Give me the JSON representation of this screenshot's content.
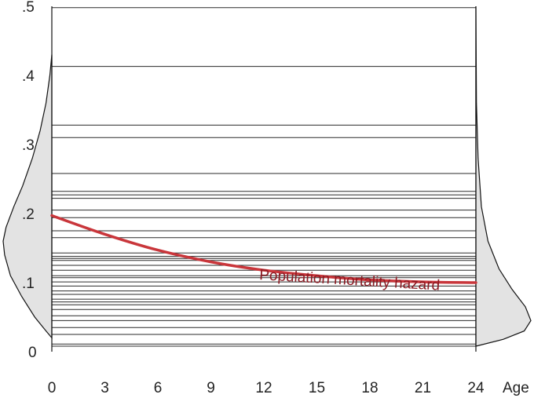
{
  "chart_data": {
    "type": "line",
    "title": "",
    "xlabel": "Age",
    "ylabel": "",
    "x_ticks": [
      "0",
      "3",
      "6",
      "9",
      "12",
      "15",
      "18",
      "21",
      "24"
    ],
    "y_ticks": [
      "0",
      ".1",
      ".2",
      ".3",
      ".4",
      ".5"
    ],
    "xlim": [
      0,
      24
    ],
    "ylim": [
      0,
      0.5
    ],
    "grid": false,
    "series": [
      {
        "name": "Population mortality hazard",
        "color": "#c9363b",
        "x": [
          0,
          3,
          6,
          9,
          12,
          15,
          18,
          21,
          24
        ],
        "y": [
          0.197,
          0.17,
          0.147,
          0.13,
          0.118,
          0.11,
          0.104,
          0.101,
          0.1
        ]
      }
    ],
    "individual_hazard_lines": [
      0.008,
      0.011,
      0.025,
      0.035,
      0.045,
      0.052,
      0.061,
      0.068,
      0.072,
      0.076,
      0.083,
      0.088,
      0.095,
      0.101,
      0.107,
      0.11,
      0.118,
      0.125,
      0.132,
      0.135,
      0.138,
      0.143,
      0.165,
      0.175,
      0.194,
      0.205,
      0.222,
      0.227,
      0.232,
      0.258,
      0.31,
      0.328,
      0.413,
      0.498
    ],
    "frailty_distribution_density": [
      {
        "y": 0.02,
        "d": 0.0
      },
      {
        "y": 0.03,
        "d": 0.12
      },
      {
        "y": 0.05,
        "d": 0.35
      },
      {
        "y": 0.08,
        "d": 0.62
      },
      {
        "y": 0.11,
        "d": 0.85
      },
      {
        "y": 0.14,
        "d": 0.97
      },
      {
        "y": 0.16,
        "d": 1.0
      },
      {
        "y": 0.18,
        "d": 0.94
      },
      {
        "y": 0.21,
        "d": 0.78
      },
      {
        "y": 0.24,
        "d": 0.6
      },
      {
        "y": 0.28,
        "d": 0.4
      },
      {
        "y": 0.32,
        "d": 0.24
      },
      {
        "y": 0.36,
        "d": 0.12
      },
      {
        "y": 0.4,
        "d": 0.04
      },
      {
        "y": 0.43,
        "d": 0.0
      }
    ],
    "final_distribution_density": [
      {
        "y": 0.008,
        "d": 0.0
      },
      {
        "y": 0.018,
        "d": 0.5
      },
      {
        "y": 0.03,
        "d": 0.88
      },
      {
        "y": 0.045,
        "d": 1.0
      },
      {
        "y": 0.065,
        "d": 0.9
      },
      {
        "y": 0.09,
        "d": 0.66
      },
      {
        "y": 0.12,
        "d": 0.42
      },
      {
        "y": 0.16,
        "d": 0.22
      },
      {
        "y": 0.21,
        "d": 0.1
      },
      {
        "y": 0.28,
        "d": 0.04
      },
      {
        "y": 0.36,
        "d": 0.01
      },
      {
        "y": 0.5,
        "d": 0.0
      }
    ]
  }
}
